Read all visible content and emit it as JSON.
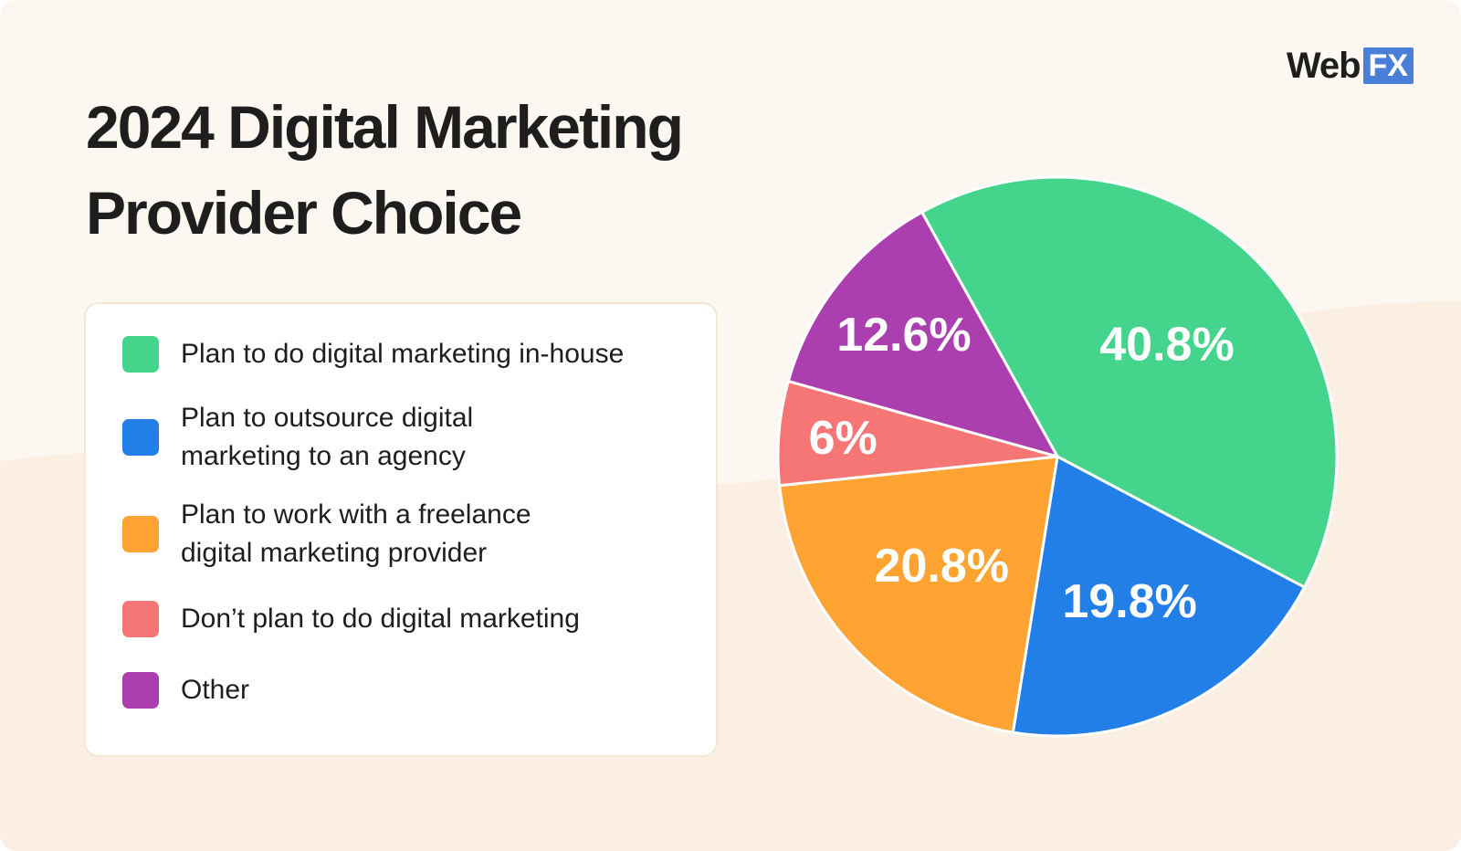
{
  "title_lines": [
    "2024 Digital Marketing",
    "Provider Choice"
  ],
  "logo": {
    "text": "Web",
    "badge": "FX"
  },
  "colors": {
    "background": "#fdf7f1",
    "in_house": "#45d48c",
    "agency": "#237fe8",
    "freelance": "#ffa332",
    "none": "#f67575",
    "other": "#ab3faf"
  },
  "legend": [
    {
      "label": "Plan to do digital marketing in-house",
      "color": "#45d48c"
    },
    {
      "label": "Plan to outsource digital marketing to an agency",
      "color": "#237fe8"
    },
    {
      "label": "Plan to work with a freelance digital marketing provider",
      "color": "#ffa332"
    },
    {
      "label": "Don’t plan to do digital marketing",
      "color": "#f67575"
    },
    {
      "label": "Other",
      "color": "#ab3faf"
    }
  ],
  "chart_data": {
    "type": "pie",
    "title": "2024 Digital Marketing Provider Choice",
    "slices": [
      {
        "label": "Plan to do digital marketing in-house",
        "value": 40.8,
        "display": "40.8%",
        "color": "#45d48c"
      },
      {
        "label": "Plan to outsource digital marketing to an agency",
        "value": 19.8,
        "display": "19.8%",
        "color": "#237fe8"
      },
      {
        "label": "Plan to work with a freelance digital marketing provider",
        "value": 20.8,
        "display": "20.8%",
        "color": "#ffa332"
      },
      {
        "label": "Don’t plan to do digital marketing",
        "value": 6,
        "display": "6%",
        "color": "#f67575"
      },
      {
        "label": "Other",
        "value": 12.6,
        "display": "12.6%",
        "color": "#ab3faf"
      }
    ],
    "legend_position": "left"
  }
}
